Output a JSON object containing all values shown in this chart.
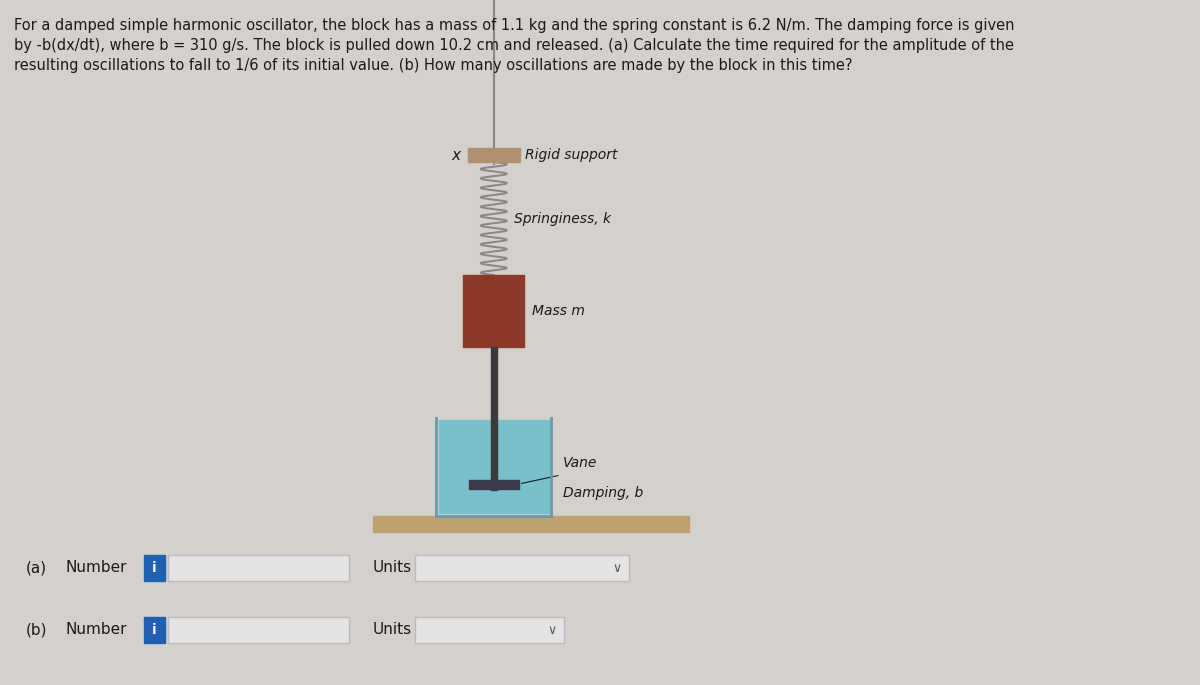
{
  "bg_color": "#d4d0cc",
  "text_color": "#1a1a1a",
  "problem_line1": "For a damped simple harmonic oscillator, the block has a mass of 1.1 kg and the spring constant is 6.2 N/m. The damping force is given",
  "problem_line2": "by -b(dx/dt), where b = 310 g/s. The block is pulled down 10.2 cm and released. (a) Calculate the time required for the amplitude of the",
  "problem_line3": "resulting oscillations to fall to 1/6 of its initial value. (b) How many oscillations are made by the block in this time?",
  "spring_color": "#888888",
  "mass_color": "#8b3a2a",
  "rod_color": "#3a3a3a",
  "vane_color": "#3a3a4a",
  "fluid_color": "#7abfcc",
  "container_outline": "#6a9aaa",
  "base_color": "#c0a070",
  "wall_color": "#888888",
  "support_color": "#b09070",
  "label_springiness": "Springiness, k",
  "label_mass": "Mass m",
  "label_vane": "Vane",
  "label_damping": "Damping, b",
  "label_rigid": "Rigid support",
  "label_x": "x",
  "info_button_color": "#2060b0",
  "input_box_color": "#e4e4e4",
  "dropdown_color": "#e4e4e4"
}
